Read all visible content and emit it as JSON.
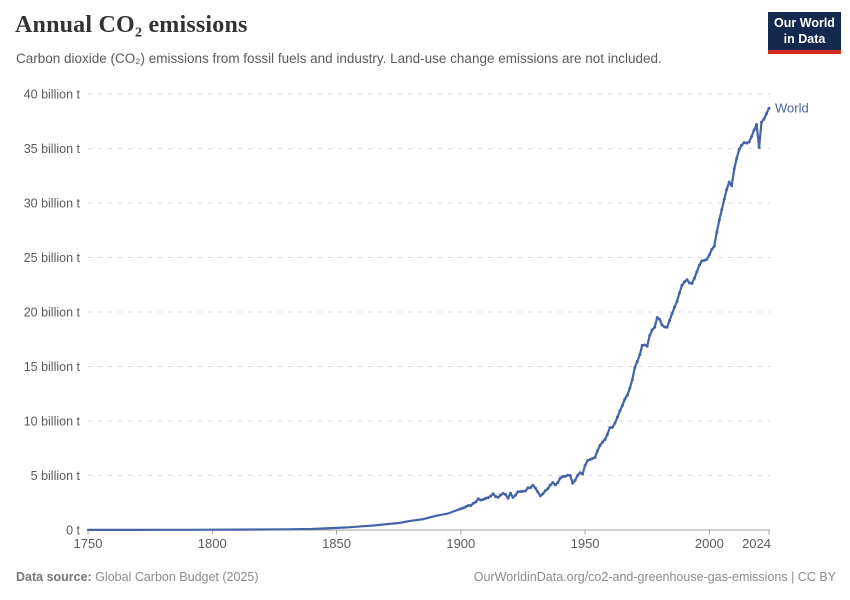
{
  "header": {
    "title": "Annual CO₂ emissions",
    "subtitle": "Carbon dioxide (CO₂) emissions from fossil fuels and industry. Land-use change emissions are not included.",
    "logo": {
      "line1": "Our World",
      "line2": "in Data"
    }
  },
  "footer": {
    "source_label": "Data source:",
    "source_value": " Global Carbon Budget (2025)",
    "right_text": "OurWorldinData.org/co2-and-greenhouse-gas-emissions | CC BY"
  },
  "colors": {
    "line": "#4464a5",
    "series_label": "#4464a5",
    "grid": "#dedede",
    "axis": "#a3a3a3",
    "tick_text": "#5b5b5b",
    "logo_bg": "#13294e",
    "logo_accent": "#d4291f"
  },
  "chart_data": {
    "type": "line",
    "title": "Annual CO₂ emissions",
    "xlabel": "",
    "ylabel": "",
    "xlim": [
      1750,
      2024
    ],
    "ylim": [
      0,
      40
    ],
    "grid": "horizontal-dashed",
    "legend_position": "end-of-line-label",
    "x_ticks": [
      1750,
      1800,
      1850,
      1900,
      1950,
      2000,
      2024
    ],
    "y_ticks": [
      {
        "value": 0,
        "label": "0 t"
      },
      {
        "value": 5,
        "label": "5 billion t"
      },
      {
        "value": 10,
        "label": "10 billion t"
      },
      {
        "value": 15,
        "label": "15 billion t"
      },
      {
        "value": 20,
        "label": "20 billion t"
      },
      {
        "value": 25,
        "label": "25 billion t"
      },
      {
        "value": 30,
        "label": "30 billion t"
      },
      {
        "value": 35,
        "label": "35 billion t"
      },
      {
        "value": 40,
        "label": "40 billion t"
      }
    ],
    "series": [
      {
        "name": "World",
        "unit": "billion t",
        "points": [
          [
            1750,
            0.009
          ],
          [
            1760,
            0.011
          ],
          [
            1770,
            0.013
          ],
          [
            1780,
            0.016
          ],
          [
            1790,
            0.02
          ],
          [
            1800,
            0.03
          ],
          [
            1810,
            0.035
          ],
          [
            1820,
            0.046
          ],
          [
            1830,
            0.064
          ],
          [
            1840,
            0.091
          ],
          [
            1850,
            0.197
          ],
          [
            1855,
            0.25
          ],
          [
            1860,
            0.34
          ],
          [
            1865,
            0.41
          ],
          [
            1870,
            0.53
          ],
          [
            1875,
            0.64
          ],
          [
            1880,
            0.84
          ],
          [
            1885,
            1.0
          ],
          [
            1890,
            1.3
          ],
          [
            1895,
            1.52
          ],
          [
            1900,
            1.95
          ],
          [
            1901,
            2.02
          ],
          [
            1902,
            2.13
          ],
          [
            1903,
            2.25
          ],
          [
            1904,
            2.25
          ],
          [
            1905,
            2.44
          ],
          [
            1906,
            2.57
          ],
          [
            1907,
            2.85
          ],
          [
            1908,
            2.75
          ],
          [
            1909,
            2.8
          ],
          [
            1910,
            2.92
          ],
          [
            1911,
            2.96
          ],
          [
            1912,
            3.11
          ],
          [
            1913,
            3.32
          ],
          [
            1914,
            3.06
          ],
          [
            1915,
            3.0
          ],
          [
            1916,
            3.2
          ],
          [
            1917,
            3.36
          ],
          [
            1918,
            3.26
          ],
          [
            1919,
            2.93
          ],
          [
            1920,
            3.37
          ],
          [
            1921,
            2.99
          ],
          [
            1922,
            3.19
          ],
          [
            1923,
            3.51
          ],
          [
            1924,
            3.52
          ],
          [
            1925,
            3.56
          ],
          [
            1926,
            3.58
          ],
          [
            1927,
            3.86
          ],
          [
            1928,
            3.88
          ],
          [
            1929,
            4.11
          ],
          [
            1930,
            3.84
          ],
          [
            1931,
            3.48
          ],
          [
            1932,
            3.13
          ],
          [
            1933,
            3.31
          ],
          [
            1934,
            3.6
          ],
          [
            1935,
            3.78
          ],
          [
            1936,
            4.12
          ],
          [
            1937,
            4.35
          ],
          [
            1938,
            4.14
          ],
          [
            1939,
            4.33
          ],
          [
            1940,
            4.75
          ],
          [
            1941,
            4.9
          ],
          [
            1942,
            4.92
          ],
          [
            1943,
            5.02
          ],
          [
            1944,
            5.0
          ],
          [
            1945,
            4.3
          ],
          [
            1946,
            4.55
          ],
          [
            1947,
            5.0
          ],
          [
            1948,
            5.25
          ],
          [
            1949,
            5.14
          ],
          [
            1950,
            5.93
          ],
          [
            1951,
            6.38
          ],
          [
            1952,
            6.46
          ],
          [
            1953,
            6.56
          ],
          [
            1954,
            6.66
          ],
          [
            1955,
            7.27
          ],
          [
            1956,
            7.76
          ],
          [
            1957,
            8.06
          ],
          [
            1958,
            8.3
          ],
          [
            1959,
            8.77
          ],
          [
            1960,
            9.39
          ],
          [
            1961,
            9.41
          ],
          [
            1962,
            9.8
          ],
          [
            1963,
            10.35
          ],
          [
            1964,
            10.92
          ],
          [
            1965,
            11.43
          ],
          [
            1966,
            12.0
          ],
          [
            1967,
            12.37
          ],
          [
            1968,
            13.01
          ],
          [
            1969,
            13.79
          ],
          [
            1970,
            14.9
          ],
          [
            1971,
            15.46
          ],
          [
            1972,
            16.07
          ],
          [
            1973,
            16.94
          ],
          [
            1974,
            16.97
          ],
          [
            1975,
            16.87
          ],
          [
            1976,
            17.84
          ],
          [
            1977,
            18.36
          ],
          [
            1978,
            18.6
          ],
          [
            1979,
            19.5
          ],
          [
            1980,
            19.33
          ],
          [
            1981,
            18.8
          ],
          [
            1982,
            18.62
          ],
          [
            1983,
            18.61
          ],
          [
            1984,
            19.22
          ],
          [
            1985,
            19.86
          ],
          [
            1986,
            20.45
          ],
          [
            1987,
            20.96
          ],
          [
            1988,
            21.75
          ],
          [
            1989,
            22.45
          ],
          [
            1990,
            22.76
          ],
          [
            1991,
            22.96
          ],
          [
            1992,
            22.66
          ],
          [
            1993,
            22.62
          ],
          [
            1994,
            23.1
          ],
          [
            1995,
            23.7
          ],
          [
            1996,
            24.3
          ],
          [
            1997,
            24.69
          ],
          [
            1998,
            24.73
          ],
          [
            1999,
            24.84
          ],
          [
            2000,
            25.25
          ],
          [
            2001,
            25.74
          ],
          [
            2002,
            26.04
          ],
          [
            2003,
            27.32
          ],
          [
            2004,
            28.44
          ],
          [
            2005,
            29.4
          ],
          [
            2006,
            30.36
          ],
          [
            2007,
            31.25
          ],
          [
            2008,
            31.92
          ],
          [
            2009,
            31.58
          ],
          [
            2010,
            33.11
          ],
          [
            2011,
            34.1
          ],
          [
            2012,
            34.91
          ],
          [
            2013,
            35.3
          ],
          [
            2014,
            35.54
          ],
          [
            2015,
            35.5
          ],
          [
            2016,
            35.6
          ],
          [
            2017,
            36.1
          ],
          [
            2018,
            36.7
          ],
          [
            2019,
            37.2
          ],
          [
            2020,
            35.1
          ],
          [
            2021,
            37.4
          ],
          [
            2022,
            37.7
          ],
          [
            2023,
            38.2
          ],
          [
            2024,
            38.7
          ]
        ]
      }
    ]
  }
}
